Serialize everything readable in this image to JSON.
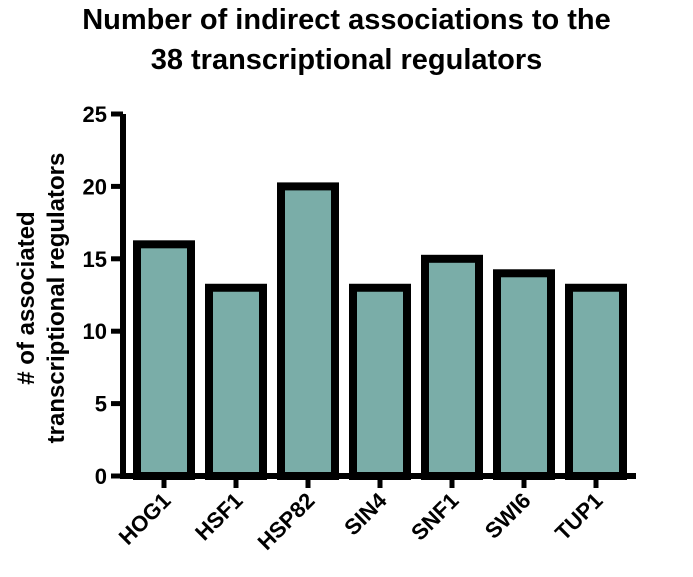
{
  "chart_data": {
    "type": "bar",
    "title_lines": [
      "Number of indirect associations to the",
      "38 transcriptional regulators"
    ],
    "xlabel": "",
    "ylabel_lines": [
      "# of associated",
      "transcriptional regulators"
    ],
    "categories": [
      "HOG1",
      "HSF1",
      "HSP82",
      "SIN4",
      "SNF1",
      "SWI6",
      "TUP1"
    ],
    "values": [
      16,
      13,
      20,
      13,
      15,
      14,
      13
    ],
    "ylim": [
      0,
      25
    ],
    "yticks": [
      "0",
      "5",
      "10",
      "15",
      "20",
      "25"
    ],
    "grid": false,
    "legend": "none",
    "bar_fill": "#7aada8",
    "bar_edge": "#000000"
  }
}
